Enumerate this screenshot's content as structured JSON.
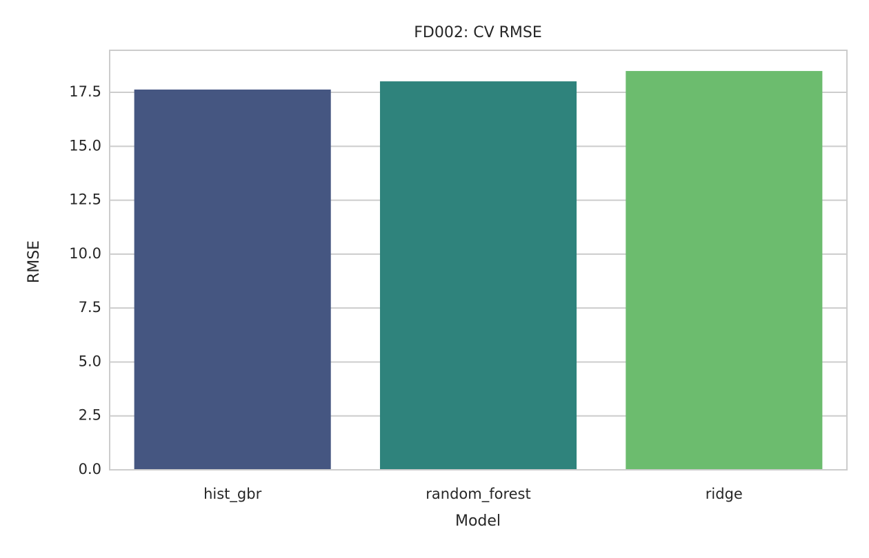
{
  "chart_data": {
    "type": "bar",
    "title": "FD002: CV RMSE",
    "x_label": "Model",
    "y_label": "RMSE",
    "categories": [
      "hist_gbr",
      "random_forest",
      "ridge"
    ],
    "values": [
      17.63,
      18.01,
      18.49
    ],
    "colors": [
      "#455681",
      "#2f837c",
      "#6cbc6e"
    ],
    "ylim": [
      0,
      19.45
    ],
    "yticks": [
      {
        "value": 0,
        "label": "0.0"
      },
      2.5,
      {
        "value": 5,
        "label": "5.0"
      },
      7.5,
      {
        "value": 10,
        "label": "10.0"
      },
      12.5,
      {
        "value": 15,
        "label": "15.0"
      },
      17.5
    ],
    "grid": true
  }
}
